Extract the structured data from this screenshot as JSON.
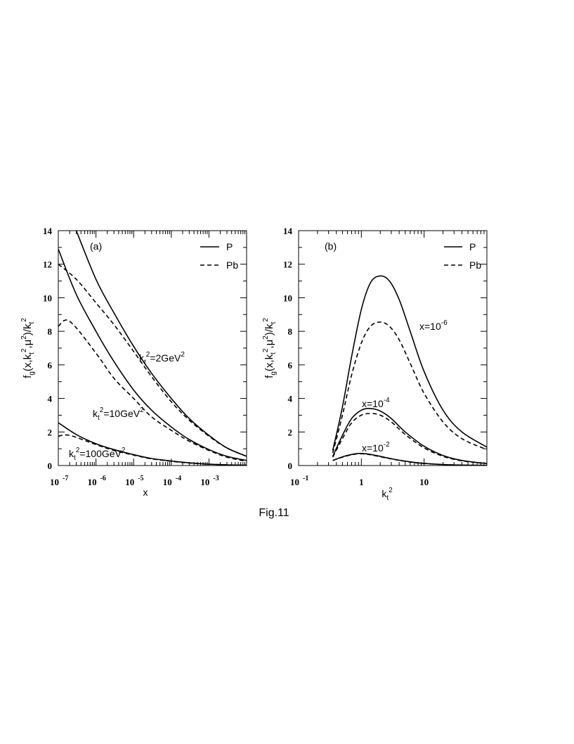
{
  "caption": "Fig.11",
  "chart_data": [
    {
      "type": "line",
      "panel_label": "(a)",
      "xscale": "log",
      "xlabel": "x",
      "ylabel": "f_g(x,k_t^2,μ^2)/k_t^2",
      "xlim": [
        1e-07,
        0.01
      ],
      "ylim": [
        0,
        14
      ],
      "yticks": [
        0,
        2,
        4,
        6,
        8,
        10,
        12,
        14
      ],
      "xtick_labels": [
        {
          "base": "10",
          "exp": "-7"
        },
        {
          "base": "10",
          "exp": "-6"
        },
        {
          "base": "10",
          "exp": "-5"
        },
        {
          "base": "10",
          "exp": "-4"
        },
        {
          "base": "10",
          "exp": "-3"
        }
      ],
      "legend": [
        {
          "label": "P",
          "style": "solid"
        },
        {
          "label": "Pb",
          "style": "dashed"
        }
      ],
      "legend_position": "top-right",
      "annotations": [
        {
          "pre": "k",
          "sub": "t",
          "sup": "2",
          "post": "=2GeV",
          "post_sup": "2"
        },
        {
          "pre": "k",
          "sub": "t",
          "sup": "2",
          "post": "=10GeV",
          "post_sup": "2"
        },
        {
          "pre": "k",
          "sub": "t",
          "sup": "2",
          "post": "=100GeV",
          "post_sup": "2"
        }
      ],
      "series": [
        {
          "group": "kt2=2",
          "style": "solid",
          "x": [
            3e-07,
            1e-06,
            3e-06,
            1e-05,
            3e-05,
            0.0001,
            0.0003,
            0.001,
            0.003,
            0.01
          ],
          "y": [
            14.0,
            11.1,
            9.1,
            7.1,
            5.5,
            4.0,
            2.8,
            1.8,
            1.05,
            0.55
          ]
        },
        {
          "group": "kt2=2",
          "style": "dashed",
          "x": [
            1e-07,
            3e-07,
            1e-06,
            3e-06,
            1e-05,
            3e-05,
            0.0001,
            0.0003,
            0.001,
            0.003,
            0.01
          ],
          "y": [
            12.0,
            11.1,
            9.7,
            8.4,
            6.8,
            5.3,
            3.8,
            2.7,
            1.75,
            1.05,
            0.55
          ]
        },
        {
          "group": "kt2=10",
          "style": "solid",
          "x": [
            1e-07,
            3e-07,
            1e-06,
            3e-06,
            1e-05,
            3e-05,
            0.0001,
            0.0003,
            0.001,
            0.003,
            0.01
          ],
          "y": [
            12.9,
            10.2,
            8.0,
            6.2,
            4.5,
            3.3,
            2.3,
            1.55,
            0.95,
            0.55,
            0.3
          ]
        },
        {
          "group": "kt2=10",
          "style": "dashed",
          "x": [
            1e-07,
            2e-07,
            1e-06,
            3e-06,
            1e-05,
            3e-05,
            0.0001,
            0.0003,
            0.001,
            0.003,
            0.01
          ],
          "y": [
            8.3,
            8.6,
            6.7,
            5.2,
            4.0,
            2.9,
            2.1,
            1.45,
            0.9,
            0.5,
            0.25
          ]
        },
        {
          "group": "kt2=100",
          "style": "solid",
          "x": [
            1e-07,
            3e-07,
            1e-06,
            3e-06,
            1e-05,
            3e-05,
            0.0001,
            0.0003,
            0.001,
            0.003,
            0.01
          ],
          "y": [
            2.55,
            1.85,
            1.3,
            0.95,
            0.65,
            0.42,
            0.27,
            0.16,
            0.08,
            0.04,
            0.02
          ]
        },
        {
          "group": "kt2=100",
          "style": "dashed",
          "x": [
            1e-07,
            2e-07,
            1e-06,
            3e-06,
            1e-05,
            3e-05,
            0.0001,
            0.0003,
            0.001,
            0.003,
            0.01
          ],
          "y": [
            1.75,
            1.8,
            1.25,
            0.9,
            0.62,
            0.4,
            0.25,
            0.15,
            0.08,
            0.04,
            0.02
          ]
        }
      ]
    },
    {
      "type": "line",
      "panel_label": "(b)",
      "xscale": "log",
      "xlabel": "k_t^2",
      "ylabel": "f_g(x,k_t^2,μ^2)/k_t^2",
      "xlim": [
        0.1,
        100
      ],
      "ylim": [
        0,
        14
      ],
      "yticks": [
        0,
        2,
        4,
        6,
        8,
        10,
        12,
        14
      ],
      "xtick_labels": [
        {
          "base": "10",
          "exp": "-1"
        },
        {
          "base": "1",
          "exp": ""
        },
        {
          "base": "10",
          "exp": ""
        }
      ],
      "legend": [
        {
          "label": "P",
          "style": "solid"
        },
        {
          "label": "Pb",
          "style": "dashed"
        }
      ],
      "legend_position": "top-right",
      "annotations": [
        {
          "pre": "x=10",
          "sup": "-6"
        },
        {
          "pre": "x=10",
          "sup": "-4"
        },
        {
          "pre": "x=10",
          "sup": "-2"
        }
      ],
      "series": [
        {
          "group": "x=1e-6",
          "style": "solid",
          "x": [
            0.35,
            0.5,
            0.7,
            1.0,
            1.4,
            2.0,
            2.8,
            4.0,
            6.0,
            10,
            20,
            40,
            100
          ],
          "y": [
            0.9,
            3.5,
            6.5,
            9.3,
            10.9,
            11.3,
            11.0,
            9.9,
            8.0,
            5.6,
            3.3,
            2.0,
            1.1
          ]
        },
        {
          "group": "x=1e-6",
          "style": "dashed",
          "x": [
            0.35,
            0.5,
            0.7,
            1.0,
            1.4,
            2.0,
            2.8,
            4.0,
            6.0,
            10,
            20,
            40,
            100
          ],
          "y": [
            0.75,
            3.0,
            5.4,
            7.3,
            8.3,
            8.55,
            8.3,
            7.5,
            6.1,
            4.3,
            2.6,
            1.6,
            0.95
          ]
        },
        {
          "group": "x=1e-4",
          "style": "solid",
          "x": [
            0.35,
            0.5,
            0.7,
            1.0,
            1.4,
            2.0,
            3.0,
            5.0,
            10,
            20,
            40,
            100
          ],
          "y": [
            0.55,
            1.8,
            2.8,
            3.3,
            3.4,
            3.25,
            2.8,
            2.0,
            1.15,
            0.6,
            0.3,
            0.12
          ]
        },
        {
          "group": "x=1e-4",
          "style": "dashed",
          "x": [
            0.35,
            0.5,
            0.7,
            1.0,
            1.4,
            2.0,
            3.0,
            5.0,
            10,
            20,
            40,
            100
          ],
          "y": [
            0.5,
            1.6,
            2.55,
            3.0,
            3.1,
            3.0,
            2.6,
            1.85,
            1.05,
            0.55,
            0.28,
            0.11
          ]
        },
        {
          "group": "x=1e-2",
          "style": "solid",
          "x": [
            0.35,
            0.5,
            0.7,
            0.9,
            1.2,
            1.6,
            2.5,
            4.0,
            8.0,
            20,
            50,
            100
          ],
          "y": [
            0.3,
            0.52,
            0.66,
            0.72,
            0.7,
            0.62,
            0.47,
            0.32,
            0.16,
            0.06,
            0.02,
            0.01
          ]
        },
        {
          "group": "x=1e-2",
          "style": "dashed",
          "x": [
            0.35,
            0.5,
            0.7,
            0.9,
            1.2,
            1.6,
            2.5,
            4.0,
            8.0,
            20,
            50,
            100
          ],
          "y": [
            0.3,
            0.5,
            0.64,
            0.7,
            0.68,
            0.6,
            0.45,
            0.31,
            0.15,
            0.06,
            0.02,
            0.01
          ]
        }
      ]
    }
  ]
}
